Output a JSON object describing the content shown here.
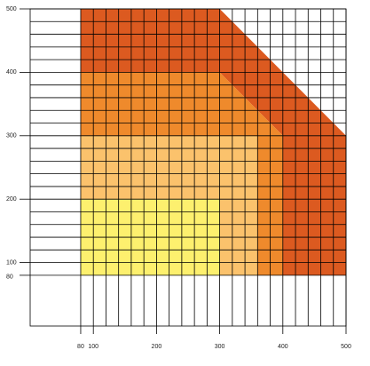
{
  "chart_data": {
    "type": "region",
    "xlim": [
      0,
      500
    ],
    "ylim": [
      0,
      500
    ],
    "xticks": [
      80,
      100,
      200,
      300,
      400,
      500
    ],
    "yticks": [
      80,
      100,
      200,
      300,
      400,
      500
    ],
    "grid": true,
    "grid_step": 20,
    "series": [
      {
        "color": "#dc5a20",
        "x": [
          80,
          80,
          300,
          500,
          500,
          400,
          400,
          300
        ],
        "values": [
          400,
          500,
          500,
          300,
          80,
          80,
          300,
          400
        ]
      },
      {
        "color": "#ef8a2c",
        "x": [
          80,
          80,
          300,
          400,
          400,
          360,
          360
        ],
        "values": [
          300,
          400,
          400,
          300,
          80,
          80,
          300
        ]
      },
      {
        "color": "#fbc26c",
        "x": [
          80,
          80,
          360,
          360,
          300,
          300
        ],
        "values": [
          200,
          300,
          300,
          80,
          80,
          200
        ]
      },
      {
        "color": "#fdf06e",
        "x": [
          80,
          80,
          300,
          300
        ],
        "values": [
          80,
          200,
          200,
          80
        ]
      }
    ]
  }
}
